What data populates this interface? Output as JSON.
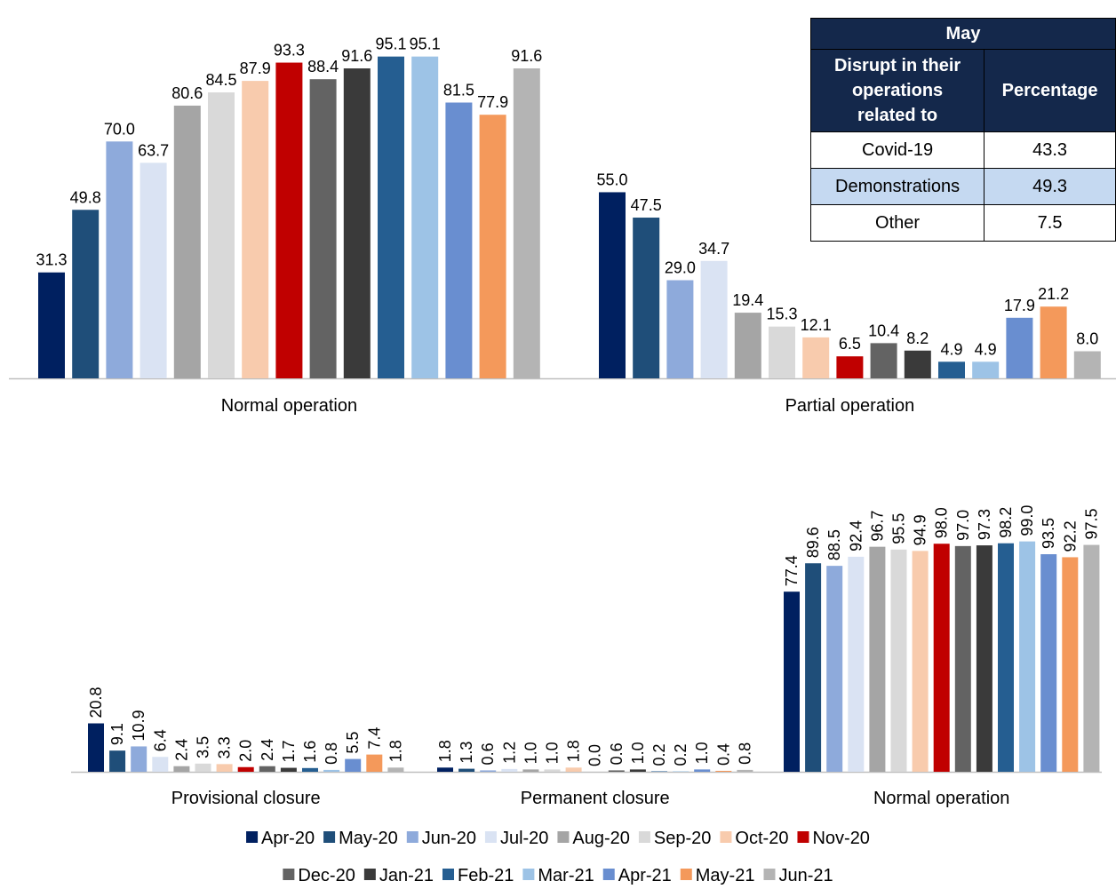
{
  "chart_data": {
    "type": "bar",
    "series": [
      {
        "name": "Apr-20",
        "color": "#002060"
      },
      {
        "name": "May-20",
        "color": "#1f4e79"
      },
      {
        "name": "Jun-20",
        "color": "#8eaadb"
      },
      {
        "name": "Jul-20",
        "color": "#dae3f3"
      },
      {
        "name": "Aug-20",
        "color": "#a5a5a5"
      },
      {
        "name": "Sep-20",
        "color": "#d9d9d9"
      },
      {
        "name": "Oct-20",
        "color": "#f8cbad"
      },
      {
        "name": "Nov-20",
        "color": "#c00000"
      },
      {
        "name": "Dec-20",
        "color": "#636363"
      },
      {
        "name": "Jan-21",
        "color": "#3a3a3a"
      },
      {
        "name": "Feb-21",
        "color": "#255e91"
      },
      {
        "name": "Mar-21",
        "color": "#9dc3e6"
      },
      {
        "name": "Apr-21",
        "color": "#698ed0"
      },
      {
        "name": "May-21",
        "color": "#f4995b"
      },
      {
        "name": "Jun-21",
        "color": "#b4b4b4"
      }
    ],
    "panels": [
      {
        "name": "top",
        "ylim": [
          0,
          100
        ],
        "label_rotation": "horizontal",
        "groups": [
          {
            "category": "Normal operation",
            "values": [
              31.3,
              49.8,
              70.0,
              63.7,
              80.6,
              84.5,
              87.9,
              93.3,
              88.4,
              91.6,
              95.1,
              95.1,
              81.5,
              77.9,
              91.6
            ],
            "labels": [
              "31.3",
              "49.8",
              "70.0",
              "63.7",
              "80.6",
              "84.5",
              "87.9",
              "93.3",
              "88.4",
              "91.6",
              "95.1",
              "95.1",
              "81.5",
              "77.9",
              "91.6"
            ]
          },
          {
            "category": "Partial operation",
            "values": [
              55.0,
              47.5,
              29.0,
              34.7,
              19.4,
              15.3,
              12.1,
              6.5,
              10.4,
              8.2,
              4.9,
              4.9,
              17.9,
              21.2,
              8.0
            ],
            "labels": [
              "55.0",
              "47.5",
              "29.0",
              "34.7",
              "19.4",
              "15.3",
              "12.1",
              "6.5",
              "10.4",
              "8.2",
              "4.9",
              "4.9",
              "17.9",
              "21.2",
              "8.0"
            ]
          }
        ]
      },
      {
        "name": "bottom",
        "ylim": [
          0,
          100
        ],
        "label_rotation": "vertical",
        "groups": [
          {
            "category": "Provisional closure",
            "values": [
              20.8,
              9.1,
              10.9,
              6.4,
              2.4,
              3.5,
              3.3,
              2.0,
              2.4,
              1.7,
              1.6,
              0.8,
              5.5,
              7.4,
              1.8
            ],
            "labels": [
              "20.8",
              "9.1",
              "10.9",
              "6.4",
              "2.4",
              "3.5",
              "3.3",
              "2.0",
              "2.4",
              "1.7",
              "1.6",
              "0.8",
              "5.5",
              "7.4",
              "1.8"
            ]
          },
          {
            "category": "Permanent closure",
            "values": [
              1.8,
              1.3,
              0.6,
              1.2,
              1.0,
              1.0,
              1.8,
              0.0,
              0.6,
              1.0,
              0.2,
              0.2,
              1.0,
              0.4,
              0.8
            ],
            "labels": [
              "1.8",
              "1.3",
              "0.6",
              "1.2",
              "1.0",
              "1.0",
              "1.8",
              "0.0",
              "0.6",
              "1.0",
              "0.2",
              "0.2",
              "1.0",
              "0.4",
              "0.8"
            ]
          },
          {
            "category": "Normal operation",
            "values": [
              77.4,
              89.6,
              88.5,
              92.4,
              96.7,
              95.5,
              94.9,
              98.0,
              97.0,
              97.3,
              98.2,
              99.0,
              93.5,
              92.2,
              97.5
            ],
            "labels": [
              "77.4",
              "89.6",
              "88.5",
              "92.4",
              "96.7",
              "95.5",
              "94.9",
              "98.0",
              "97.0",
              "97.3",
              "98.2",
              "99.0",
              "93.5",
              "92.2",
              "97.5"
            ]
          }
        ]
      }
    ],
    "legend": {
      "placement": "bottom-center",
      "rows": 2
    }
  },
  "table": {
    "title": "May",
    "col1_header_lines": [
      "Disrupt in their",
      "operations",
      "related to"
    ],
    "col2_header": "Percentage",
    "rows": [
      {
        "label": "Covid-19",
        "value": "43.3"
      },
      {
        "label": "Demonstrations",
        "value": "49.3",
        "highlight": true
      },
      {
        "label": "Other",
        "value": "7.5"
      }
    ],
    "header_color": "#14284b",
    "highlight_color": "#c5d9f1"
  }
}
